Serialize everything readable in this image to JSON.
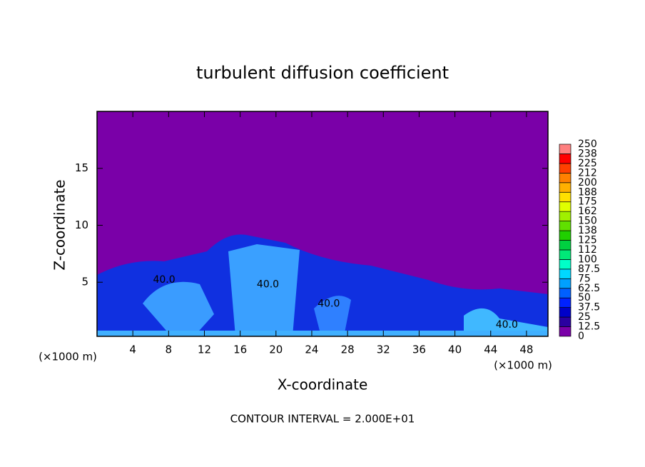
{
  "chart_data": {
    "type": "contour",
    "title": "turbulent diffusion coefficient",
    "xlabel": "X-coordinate",
    "ylabel": "Z-coordinate",
    "x_unit": "(×1000 m)",
    "y_unit": "(×1000 m)",
    "xlim": [
      0,
      50.4
    ],
    "ylim": [
      0.25,
      20
    ],
    "xticks": [
      4,
      8,
      12,
      16,
      20,
      24,
      28,
      32,
      36,
      40,
      44,
      48
    ],
    "yticks": [
      5,
      10,
      15
    ],
    "colorbar": {
      "levels": [
        0,
        12.5,
        25,
        37.5,
        50,
        62.5,
        75,
        87.5,
        100,
        {
          "value": 112.5,
          "label": "112"
        },
        125,
        {
          "value": 137.5,
          "label": "138"
        },
        150,
        {
          "value": 162.5,
          "label": "162"
        },
        175,
        {
          "value": 187.5,
          "label": "188"
        },
        200,
        {
          "value": 212.5,
          "label": "212"
        },
        225,
        {
          "value": 237.5,
          "label": "238"
        },
        250
      ],
      "colors": [
        "#7a00a8",
        "#2a00a0",
        "#0000c8",
        "#0022ff",
        "#0060ff",
        "#00a0ff",
        "#00d8ff",
        "#00ffc8",
        "#00e878",
        "#00d040",
        "#20d000",
        "#60e000",
        "#a0f000",
        "#e0ff00",
        "#ffe000",
        "#ffb000",
        "#ff8000",
        "#ff4000",
        "#ff0000",
        "#ff8080"
      ]
    },
    "contour_labels": [
      {
        "label": "40.0",
        "x": 7.5,
        "y": 5.2
      },
      {
        "label": "40.0",
        "x": 19.1,
        "y": 4.8
      },
      {
        "label": "40.0",
        "x": 25.9,
        "y": 3.1
      },
      {
        "label": "40.0",
        "x": 45.8,
        "y": 1.25
      }
    ],
    "footer": "CONTOUR INTERVAL = 2.000E+01"
  }
}
